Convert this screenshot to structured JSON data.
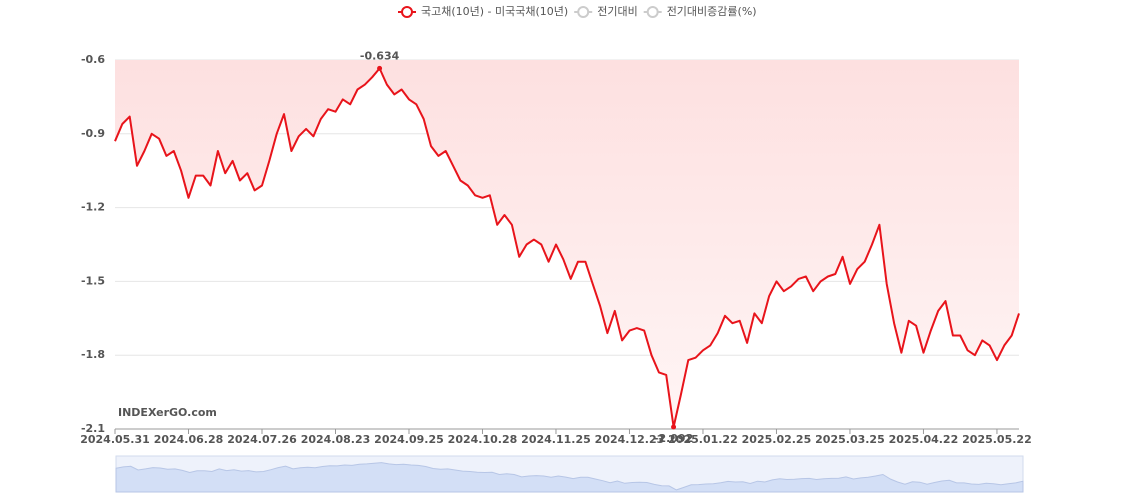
{
  "chart_data": {
    "type": "line",
    "categories": [
      "2024.05.31",
      null,
      null,
      null,
      null,
      null,
      null,
      null,
      null,
      null,
      "2024.06.28",
      null,
      null,
      null,
      null,
      null,
      null,
      null,
      null,
      null,
      "2024.07.26",
      null,
      null,
      null,
      null,
      null,
      null,
      null,
      null,
      null,
      "2024.08.23",
      null,
      null,
      null,
      null,
      null,
      null,
      null,
      null,
      null,
      "2024.09.25",
      null,
      null,
      null,
      null,
      null,
      null,
      null,
      null,
      null,
      "2024.10.28",
      null,
      null,
      null,
      null,
      null,
      null,
      null,
      null,
      null,
      "2024.11.25",
      null,
      null,
      null,
      null,
      null,
      null,
      null,
      null,
      null,
      "2024.12.23",
      null,
      null,
      null,
      null,
      null,
      null,
      null,
      null,
      null,
      "2025.01.22",
      null,
      null,
      null,
      null,
      null,
      null,
      null,
      null,
      null,
      "2025.02.25",
      null,
      null,
      null,
      null,
      null,
      null,
      null,
      null,
      null,
      "2025.03.25",
      null,
      null,
      null,
      null,
      null,
      null,
      null,
      null,
      null,
      "2025.04.22",
      null,
      null,
      null,
      null,
      null,
      null,
      null,
      null,
      null,
      "2025.05.22",
      null,
      null,
      null
    ],
    "series": [
      {
        "name": "국고채(10년) - 미국국채(10년)",
        "color": "#e8141b",
        "visible": true,
        "values": [
          -0.93,
          -0.86,
          -0.83,
          -1.03,
          -0.97,
          -0.9,
          -0.92,
          -0.99,
          -0.97,
          -1.05,
          -1.16,
          -1.07,
          -1.07,
          -1.11,
          -0.97,
          -1.06,
          -1.01,
          -1.09,
          -1.06,
          -1.13,
          -1.11,
          -1.01,
          -0.9,
          -0.82,
          -0.97,
          -0.91,
          -0.88,
          -0.91,
          -0.84,
          -0.8,
          -0.81,
          -0.76,
          -0.78,
          -0.72,
          -0.7,
          -0.67,
          -0.634,
          -0.7,
          -0.74,
          -0.72,
          -0.76,
          -0.78,
          -0.84,
          -0.95,
          -0.99,
          -0.97,
          -1.03,
          -1.09,
          -1.11,
          -1.15,
          -1.16,
          -1.15,
          -1.27,
          -1.23,
          -1.27,
          -1.4,
          -1.35,
          -1.33,
          -1.35,
          -1.42,
          -1.35,
          -1.41,
          -1.49,
          -1.42,
          -1.42,
          -1.51,
          -1.6,
          -1.71,
          -1.62,
          -1.74,
          -1.7,
          -1.69,
          -1.7,
          -1.8,
          -1.87,
          -1.88,
          -2.092,
          -1.96,
          -1.82,
          -1.81,
          -1.78,
          -1.76,
          -1.71,
          -1.64,
          -1.67,
          -1.66,
          -1.75,
          -1.63,
          -1.67,
          -1.56,
          -1.5,
          -1.54,
          -1.52,
          -1.49,
          -1.48,
          -1.54,
          -1.5,
          -1.48,
          -1.47,
          -1.4,
          -1.51,
          -1.45,
          -1.42,
          -1.35,
          -1.27,
          -1.51,
          -1.67,
          -1.79,
          -1.66,
          -1.68,
          -1.79,
          -1.7,
          -1.62,
          -1.58,
          -1.72,
          -1.72,
          -1.78,
          -1.8,
          -1.74,
          -1.76,
          -1.82,
          -1.76,
          -1.72,
          -1.63
        ]
      },
      {
        "name": "전기대비",
        "color": "#cccccc",
        "visible": false
      },
      {
        "name": "전기대비증감률(%)",
        "color": "#cccccc",
        "visible": false
      }
    ],
    "ylim": [
      -2.1,
      -0.6
    ],
    "yticks": [
      -0.6,
      -0.9,
      -1.2,
      -1.5,
      -1.8,
      -2.1
    ],
    "grid": true,
    "area": true,
    "mark_extremes": true,
    "watermark": "INDEXerGO.com"
  }
}
